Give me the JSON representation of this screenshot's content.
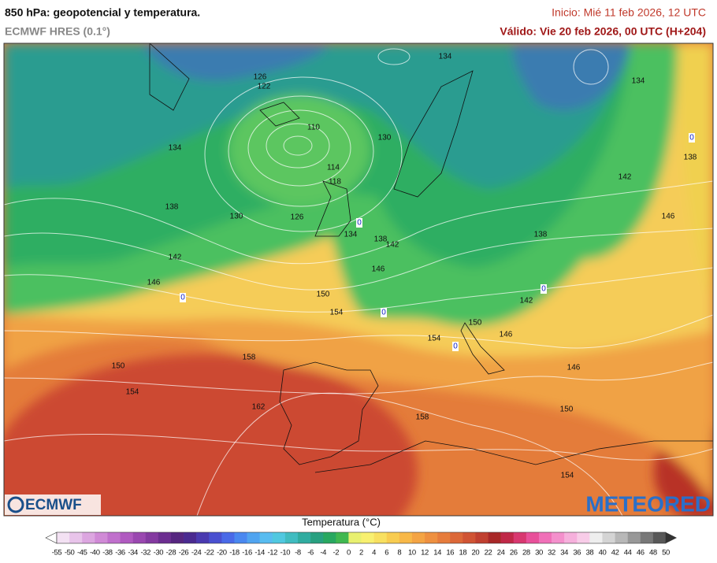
{
  "header": {
    "title": "850 hPa: geopotencial y temperatura.",
    "model": "ECMWF HRES (0.1°)",
    "init": "Inicio: Mié 11 feb 2026, 12 UTC",
    "valid": "Válido: Vie 20 feb 2026, 00 UTC (H+204)"
  },
  "map": {
    "geopotential_labels": [
      134,
      126,
      122,
      110,
      130,
      134,
      114,
      118,
      138,
      130,
      126,
      134,
      138,
      142,
      142,
      146,
      146,
      150,
      154,
      134,
      142,
      138,
      146,
      138,
      142,
      150,
      146,
      154,
      146,
      150,
      154,
      158,
      162,
      158,
      150,
      154
    ],
    "zero_isotherm_labels": [
      0,
      0,
      0,
      0,
      0,
      0
    ]
  },
  "logos": {
    "left": "ECMWF",
    "right": "METEORED"
  },
  "legend": {
    "title": "Temperatura (°C)",
    "levels": [
      -55,
      -50,
      -45,
      -40,
      -38,
      -36,
      -34,
      -32,
      -30,
      -28,
      -26,
      -24,
      -22,
      -20,
      -18,
      -16,
      -14,
      -12,
      -10,
      -8,
      -6,
      -4,
      -2,
      0,
      2,
      4,
      6,
      8,
      10,
      12,
      14,
      16,
      18,
      20,
      22,
      24,
      26,
      28,
      30,
      32,
      34,
      36,
      38,
      40,
      42,
      44,
      46,
      48,
      50
    ],
    "colors": [
      "#f3e1f3",
      "#e8c4ea",
      "#dca6e0",
      "#d08ad6",
      "#c070cc",
      "#b05ac0",
      "#9a48b0",
      "#843aa0",
      "#6c2e90",
      "#562680",
      "#4a2a90",
      "#4a3ab0",
      "#4a50d0",
      "#4a6ae8",
      "#4a88f0",
      "#50a4f0",
      "#58bcf0",
      "#50c8e0",
      "#40bcc0",
      "#30aca0",
      "#28a080",
      "#28a860",
      "#40b850",
      "#e8f070",
      "#f8f070",
      "#f8e060",
      "#f8cc50",
      "#f8b848",
      "#f4a444",
      "#ee9040",
      "#e67c3c",
      "#dc6838",
      "#d05434",
      "#c04030",
      "#a82828",
      "#c02848",
      "#d83870",
      "#e8509a",
      "#f070b8",
      "#f490cc",
      "#f6b0dc",
      "#f8cce8",
      "#eeeeee",
      "#d4d4d4",
      "#b8b8b8",
      "#989898",
      "#787878",
      "#585858"
    ]
  }
}
